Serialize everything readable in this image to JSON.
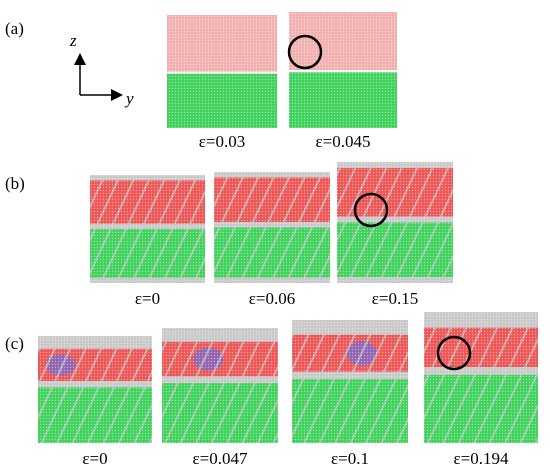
{
  "figure": {
    "axes": {
      "vertical": "z",
      "horizontal": "y"
    },
    "panels": [
      {
        "label": "(a)",
        "frames": [
          {
            "caption": "ε=0.03"
          },
          {
            "caption": "ε=0.045"
          }
        ]
      },
      {
        "label": "(b)",
        "frames": [
          {
            "caption": "ε=0"
          },
          {
            "caption": "ε=0.06"
          },
          {
            "caption": "ε=0.15"
          }
        ]
      },
      {
        "label": "(c)",
        "frames": [
          {
            "caption": "ε=0"
          },
          {
            "caption": "ε=0.047"
          },
          {
            "caption": "ε=0.1"
          },
          {
            "caption": "ε=0.194"
          }
        ]
      }
    ]
  }
}
